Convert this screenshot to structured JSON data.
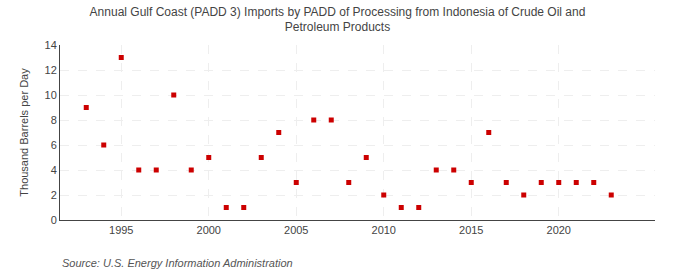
{
  "chart_data": {
    "type": "scatter",
    "title": "Annual Gulf Coast (PADD 3) Imports by PADD of Processing from Indonesia of Crude Oil and\nPetroleum Products",
    "ylabel": "Thousand Barrels per Day",
    "annotations": [
      "Source: U.S. Energy Information Administration"
    ],
    "x": [
      1993,
      1994,
      1995,
      1996,
      1997,
      1998,
      1999,
      2000,
      2001,
      2002,
      2003,
      2004,
      2005,
      2006,
      2007,
      2008,
      2009,
      2010,
      2011,
      2012,
      2013,
      2014,
      2015,
      2016,
      2017,
      2018,
      2019,
      2020,
      2021,
      2022,
      2023
    ],
    "values": [
      9,
      6,
      13,
      4,
      4,
      10,
      4,
      5,
      1,
      1,
      5,
      7,
      3,
      8,
      8,
      3,
      5,
      2,
      1,
      1,
      4,
      4,
      3,
      7,
      3,
      2,
      3,
      3,
      3,
      3,
      2
    ],
    "color": "#cc0000",
    "marker": "square",
    "xlim": [
      1991.5,
      2025.5
    ],
    "xticks": [
      1995,
      2000,
      2005,
      2010,
      2015,
      2020
    ],
    "ylim": [
      0,
      14
    ],
    "yticks": [
      0,
      2,
      4,
      6,
      8,
      10,
      12,
      14
    ],
    "grid": true
  }
}
